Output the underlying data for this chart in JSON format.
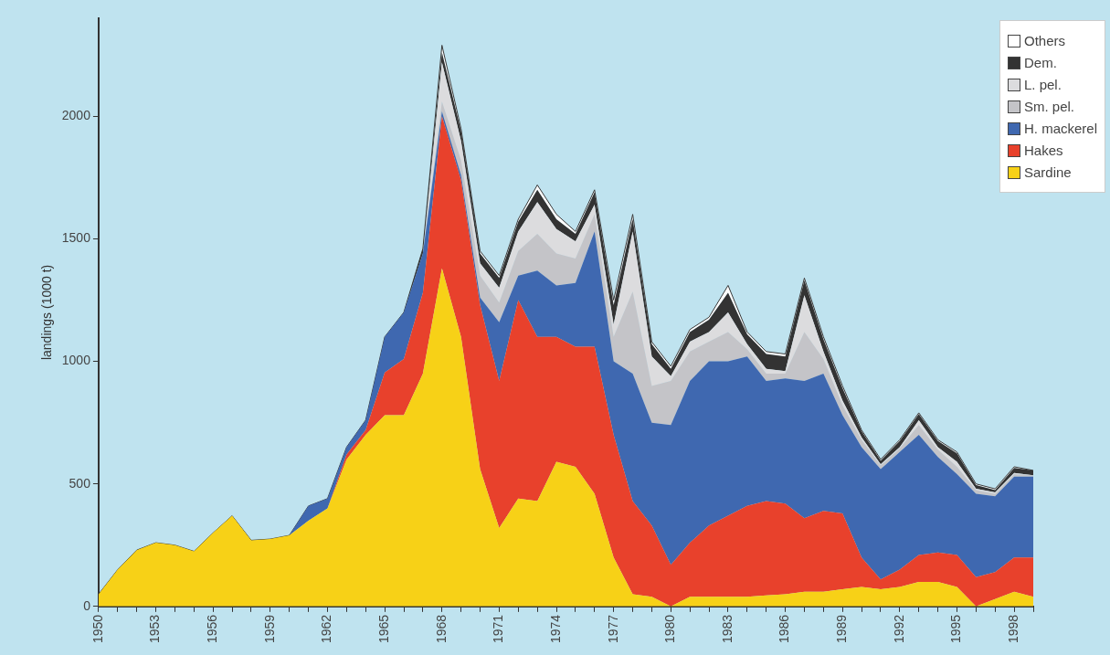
{
  "chart_data": {
    "type": "area",
    "stacked": true,
    "ylabel": "landings (1000 t)",
    "x": [
      1950,
      1951,
      1952,
      1953,
      1954,
      1955,
      1956,
      1957,
      1958,
      1959,
      1960,
      1961,
      1962,
      1963,
      1964,
      1965,
      1966,
      1967,
      1968,
      1969,
      1970,
      1971,
      1972,
      1973,
      1974,
      1975,
      1976,
      1977,
      1978,
      1979,
      1980,
      1981,
      1982,
      1983,
      1984,
      1985,
      1986,
      1987,
      1988,
      1989,
      1990,
      1991,
      1992,
      1993,
      1994,
      1995,
      1996,
      1997,
      1998,
      1999
    ],
    "xlim": [
      1950,
      1999
    ],
    "xticks": [
      1950,
      {
        "value": 1951,
        "label": null
      },
      {
        "value": 1952,
        "label": null
      },
      1953,
      {
        "value": 1954,
        "label": null
      },
      {
        "value": 1955,
        "label": null
      },
      1956,
      {
        "value": 1957,
        "label": null
      },
      {
        "value": 1958,
        "label": null
      },
      1959,
      {
        "value": 1960,
        "label": null
      },
      {
        "value": 1961,
        "label": null
      },
      1962,
      {
        "value": 1963,
        "label": null
      },
      {
        "value": 1964,
        "label": null
      },
      1965,
      {
        "value": 1966,
        "label": null
      },
      {
        "value": 1967,
        "label": null
      },
      1968,
      {
        "value": 1969,
        "label": null
      },
      {
        "value": 1970,
        "label": null
      },
      1971,
      {
        "value": 1972,
        "label": null
      },
      {
        "value": 1973,
        "label": null
      },
      1974,
      {
        "value": 1975,
        "label": null
      },
      {
        "value": 1976,
        "label": null
      },
      1977,
      {
        "value": 1978,
        "label": null
      },
      {
        "value": 1979,
        "label": null
      },
      1980,
      {
        "value": 1981,
        "label": null
      },
      {
        "value": 1982,
        "label": null
      },
      1983,
      {
        "value": 1984,
        "label": null
      },
      {
        "value": 1985,
        "label": null
      },
      1986,
      {
        "value": 1987,
        "label": null
      },
      {
        "value": 1988,
        "label": null
      },
      1989,
      {
        "value": 1990,
        "label": null
      },
      {
        "value": 1991,
        "label": null
      },
      1992,
      {
        "value": 1993,
        "label": null
      },
      {
        "value": 1994,
        "label": null
      },
      1995,
      {
        "value": 1996,
        "label": null
      },
      {
        "value": 1997,
        "label": null
      },
      1998,
      {
        "value": 1999,
        "label": null
      }
    ],
    "ylim": [
      0,
      2400
    ],
    "yticks": [
      0,
      500,
      1000,
      1500,
      2000
    ],
    "grid": false,
    "legend": "top right",
    "series": [
      {
        "name": "Sardine",
        "color": "#f7d117",
        "values": [
          50,
          150,
          230,
          260,
          250,
          225,
          300,
          370,
          270,
          275,
          290,
          350,
          400,
          600,
          700,
          780,
          780,
          950,
          1380,
          1100,
          560,
          320,
          440,
          430,
          590,
          570,
          460,
          200,
          50,
          40,
          0,
          40,
          40,
          40,
          40,
          45,
          50,
          60,
          60,
          70,
          80,
          70,
          80,
          100,
          100,
          80,
          0,
          30,
          60,
          40
        ]
      },
      {
        "name": "Hakes",
        "color": "#e8412c",
        "values": [
          0,
          0,
          0,
          0,
          0,
          0,
          0,
          0,
          0,
          0,
          0,
          0,
          0,
          20,
          20,
          175,
          230,
          330,
          620,
          640,
          670,
          600,
          810,
          670,
          510,
          490,
          600,
          500,
          380,
          290,
          170,
          220,
          290,
          330,
          370,
          385,
          370,
          300,
          330,
          310,
          120,
          40,
          70,
          110,
          120,
          130,
          120,
          110,
          140,
          160
        ]
      },
      {
        "name": "H. mackerel",
        "color": "#3f68b0",
        "values": [
          0,
          0,
          0,
          0,
          0,
          0,
          0,
          0,
          0,
          0,
          0,
          60,
          40,
          30,
          40,
          145,
          190,
          160,
          20,
          20,
          30,
          240,
          100,
          270,
          210,
          260,
          470,
          300,
          520,
          420,
          570,
          660,
          670,
          630,
          610,
          490,
          510,
          560,
          560,
          400,
          450,
          450,
          480,
          490,
          390,
          330,
          340,
          310,
          330,
          330
        ]
      },
      {
        "name": "Sm. pel.",
        "color": "#c4c4c8",
        "values": [
          0,
          0,
          0,
          0,
          0,
          0,
          0,
          0,
          0,
          0,
          0,
          0,
          0,
          0,
          0,
          0,
          0,
          0,
          40,
          60,
          90,
          80,
          100,
          150,
          130,
          100,
          70,
          100,
          335,
          150,
          180,
          120,
          80,
          120,
          30,
          30,
          20,
          200,
          60,
          40,
          30,
          15,
          15,
          40,
          30,
          30,
          15,
          10,
          10,
          5
        ]
      },
      {
        "name": "L. pel.",
        "color": "#dcdcde",
        "values": [
          0,
          0,
          0,
          0,
          0,
          0,
          0,
          0,
          0,
          0,
          0,
          0,
          0,
          0,
          0,
          0,
          0,
          0,
          160,
          80,
          50,
          60,
          80,
          130,
          100,
          70,
          40,
          50,
          245,
          120,
          20,
          40,
          40,
          80,
          20,
          20,
          10,
          150,
          30,
          20,
          10,
          5,
          5,
          20,
          10,
          20,
          5,
          5,
          5,
          0
        ]
      },
      {
        "name": "Dem.",
        "color": "#333333",
        "values": [
          0,
          0,
          0,
          0,
          0,
          0,
          0,
          0,
          0,
          0,
          0,
          0,
          0,
          0,
          0,
          0,
          0,
          20,
          40,
          40,
          40,
          40,
          40,
          50,
          40,
          30,
          50,
          80,
          50,
          50,
          30,
          40,
          50,
          80,
          40,
          60,
          60,
          60,
          50,
          50,
          25,
          15,
          25,
          25,
          25,
          35,
          15,
          10,
          20,
          20
        ]
      },
      {
        "name": "Others",
        "color": "#ffffff",
        "values": [
          0,
          0,
          0,
          0,
          0,
          0,
          0,
          0,
          0,
          0,
          0,
          0,
          0,
          0,
          0,
          0,
          0,
          0,
          30,
          10,
          10,
          10,
          10,
          20,
          20,
          10,
          10,
          20,
          20,
          10,
          10,
          10,
          10,
          30,
          10,
          10,
          10,
          10,
          10,
          10,
          5,
          5,
          5,
          5,
          5,
          5,
          5,
          5,
          5,
          0
        ]
      }
    ]
  }
}
